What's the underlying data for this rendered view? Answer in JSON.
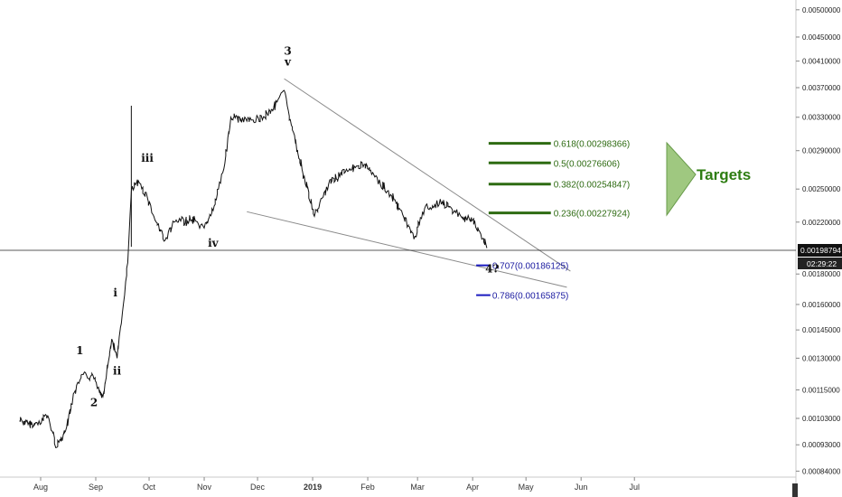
{
  "chart_data": {
    "type": "line",
    "pair_precision": "8 decimals",
    "y_axis_ticks": [
      "0.00500000",
      "0.00450000",
      "0.00410000",
      "0.00370000",
      "0.00330000",
      "0.00290000",
      "0.00250000",
      "0.00220000",
      "0.00180000",
      "0.00160000",
      "0.00145000",
      "0.00130000",
      "0.00115000",
      "0.00103000",
      "0.00093000",
      "0.00084000"
    ],
    "x_axis_ticks": [
      "Aug",
      "Sep",
      "Oct",
      "Nov",
      "Dec",
      "2019",
      "Feb",
      "Mar",
      "Apr",
      "May",
      "Jun",
      "Jul"
    ],
    "current_price": "0.00198794",
    "countdown": "02:29:22",
    "series": [
      {
        "values": [
          [
            "2018-07-20",
            0.00102
          ],
          [
            "2018-07-28",
            0.001
          ],
          [
            "2018-08-05",
            0.00104
          ],
          [
            "2018-08-10",
            0.00092
          ],
          [
            "2018-08-15",
            0.00098
          ],
          [
            "2018-08-20",
            0.00114
          ],
          [
            "2018-08-25",
            0.00122
          ],
          [
            "2018-08-31",
            0.0012
          ],
          [
            "2018-09-05",
            0.00112
          ],
          [
            "2018-09-10",
            0.0014
          ],
          [
            "2018-09-13",
            0.0013
          ],
          [
            "2018-09-16",
            0.00155
          ],
          [
            "2018-09-19",
            0.00188
          ],
          [
            "2018-09-21",
            0.00248
          ],
          [
            "2018-09-25",
            0.00258
          ],
          [
            "2018-09-30",
            0.00242
          ],
          [
            "2018-10-05",
            0.0022
          ],
          [
            "2018-10-10",
            0.00205
          ],
          [
            "2018-10-15",
            0.0022
          ],
          [
            "2018-10-25",
            0.00222
          ],
          [
            "2018-11-01",
            0.00215
          ],
          [
            "2018-11-06",
            0.0023
          ],
          [
            "2018-11-12",
            0.0027
          ],
          [
            "2018-11-16",
            0.0033
          ],
          [
            "2018-11-25",
            0.00325
          ],
          [
            "2018-12-05",
            0.0033
          ],
          [
            "2018-12-12",
            0.0035
          ],
          [
            "2018-12-16",
            0.00366
          ],
          [
            "2018-12-20",
            0.0032
          ],
          [
            "2018-12-26",
            0.0027
          ],
          [
            "2019-01-02",
            0.00225
          ],
          [
            "2019-01-10",
            0.00255
          ],
          [
            "2019-01-20",
            0.0027
          ],
          [
            "2019-01-30",
            0.00275
          ],
          [
            "2019-02-05",
            0.00262
          ],
          [
            "2019-02-12",
            0.00248
          ],
          [
            "2019-02-20",
            0.0023
          ],
          [
            "2019-02-27",
            0.00206
          ],
          [
            "2019-03-05",
            0.00232
          ],
          [
            "2019-03-15",
            0.00238
          ],
          [
            "2019-03-25",
            0.00226
          ],
          [
            "2019-04-01",
            0.00222
          ],
          [
            "2019-04-05",
            0.00212
          ],
          [
            "2019-04-09",
            0.00199
          ]
        ]
      }
    ],
    "wave_labels": [
      {
        "text": "1",
        "x": "2018-08-23",
        "y": 0.00132
      },
      {
        "text": "2",
        "x": "2018-08-31",
        "y": 0.00108
      },
      {
        "text": "i",
        "x": "2018-09-12",
        "y": 0.00165
      },
      {
        "text": "ii",
        "x": "2018-09-13",
        "y": 0.00122
      },
      {
        "text": "iii",
        "x": "2018-09-30",
        "y": 0.00278
      },
      {
        "text": "iv",
        "x": "2018-11-06",
        "y": 0.002
      },
      {
        "text": "3",
        "x": "2018-12-18",
        "y": 0.0042
      },
      {
        "text": "v",
        "x": "2018-12-18",
        "y": 0.00403
      },
      {
        "text": "4?",
        "x": "2019-04-12",
        "y": 0.00181
      }
    ],
    "trendlines": [
      {
        "from": [
          "2018-12-16",
          0.00383
        ],
        "to": [
          "2019-05-26",
          0.00182
        ]
      },
      {
        "from": [
          "2018-11-25",
          0.00229
        ],
        "to": [
          "2019-05-24",
          0.00171
        ]
      }
    ],
    "fib_targets": [
      {
        "label": "0.618(0.00298366)",
        "y": 0.00298366,
        "color": "#2e6b12"
      },
      {
        "label": "0.5(0.00276606)",
        "y": 0.00276606,
        "color": "#2e6b12"
      },
      {
        "label": "0.382(0.00254847)",
        "y": 0.00254847,
        "color": "#2e6b12"
      },
      {
        "label": "0.236(0.00227924)",
        "y": 0.00227924,
        "color": "#2e6b12"
      }
    ],
    "fib_supports": [
      {
        "label": "0.707(0.00186125)",
        "y": 0.00186125,
        "color": "#1a1ac0"
      },
      {
        "label": "0.786(0.00165875)",
        "y": 0.00165875,
        "color": "#1a1ac0"
      }
    ],
    "annotation": "Targets",
    "grid": false,
    "log_scale": true
  }
}
